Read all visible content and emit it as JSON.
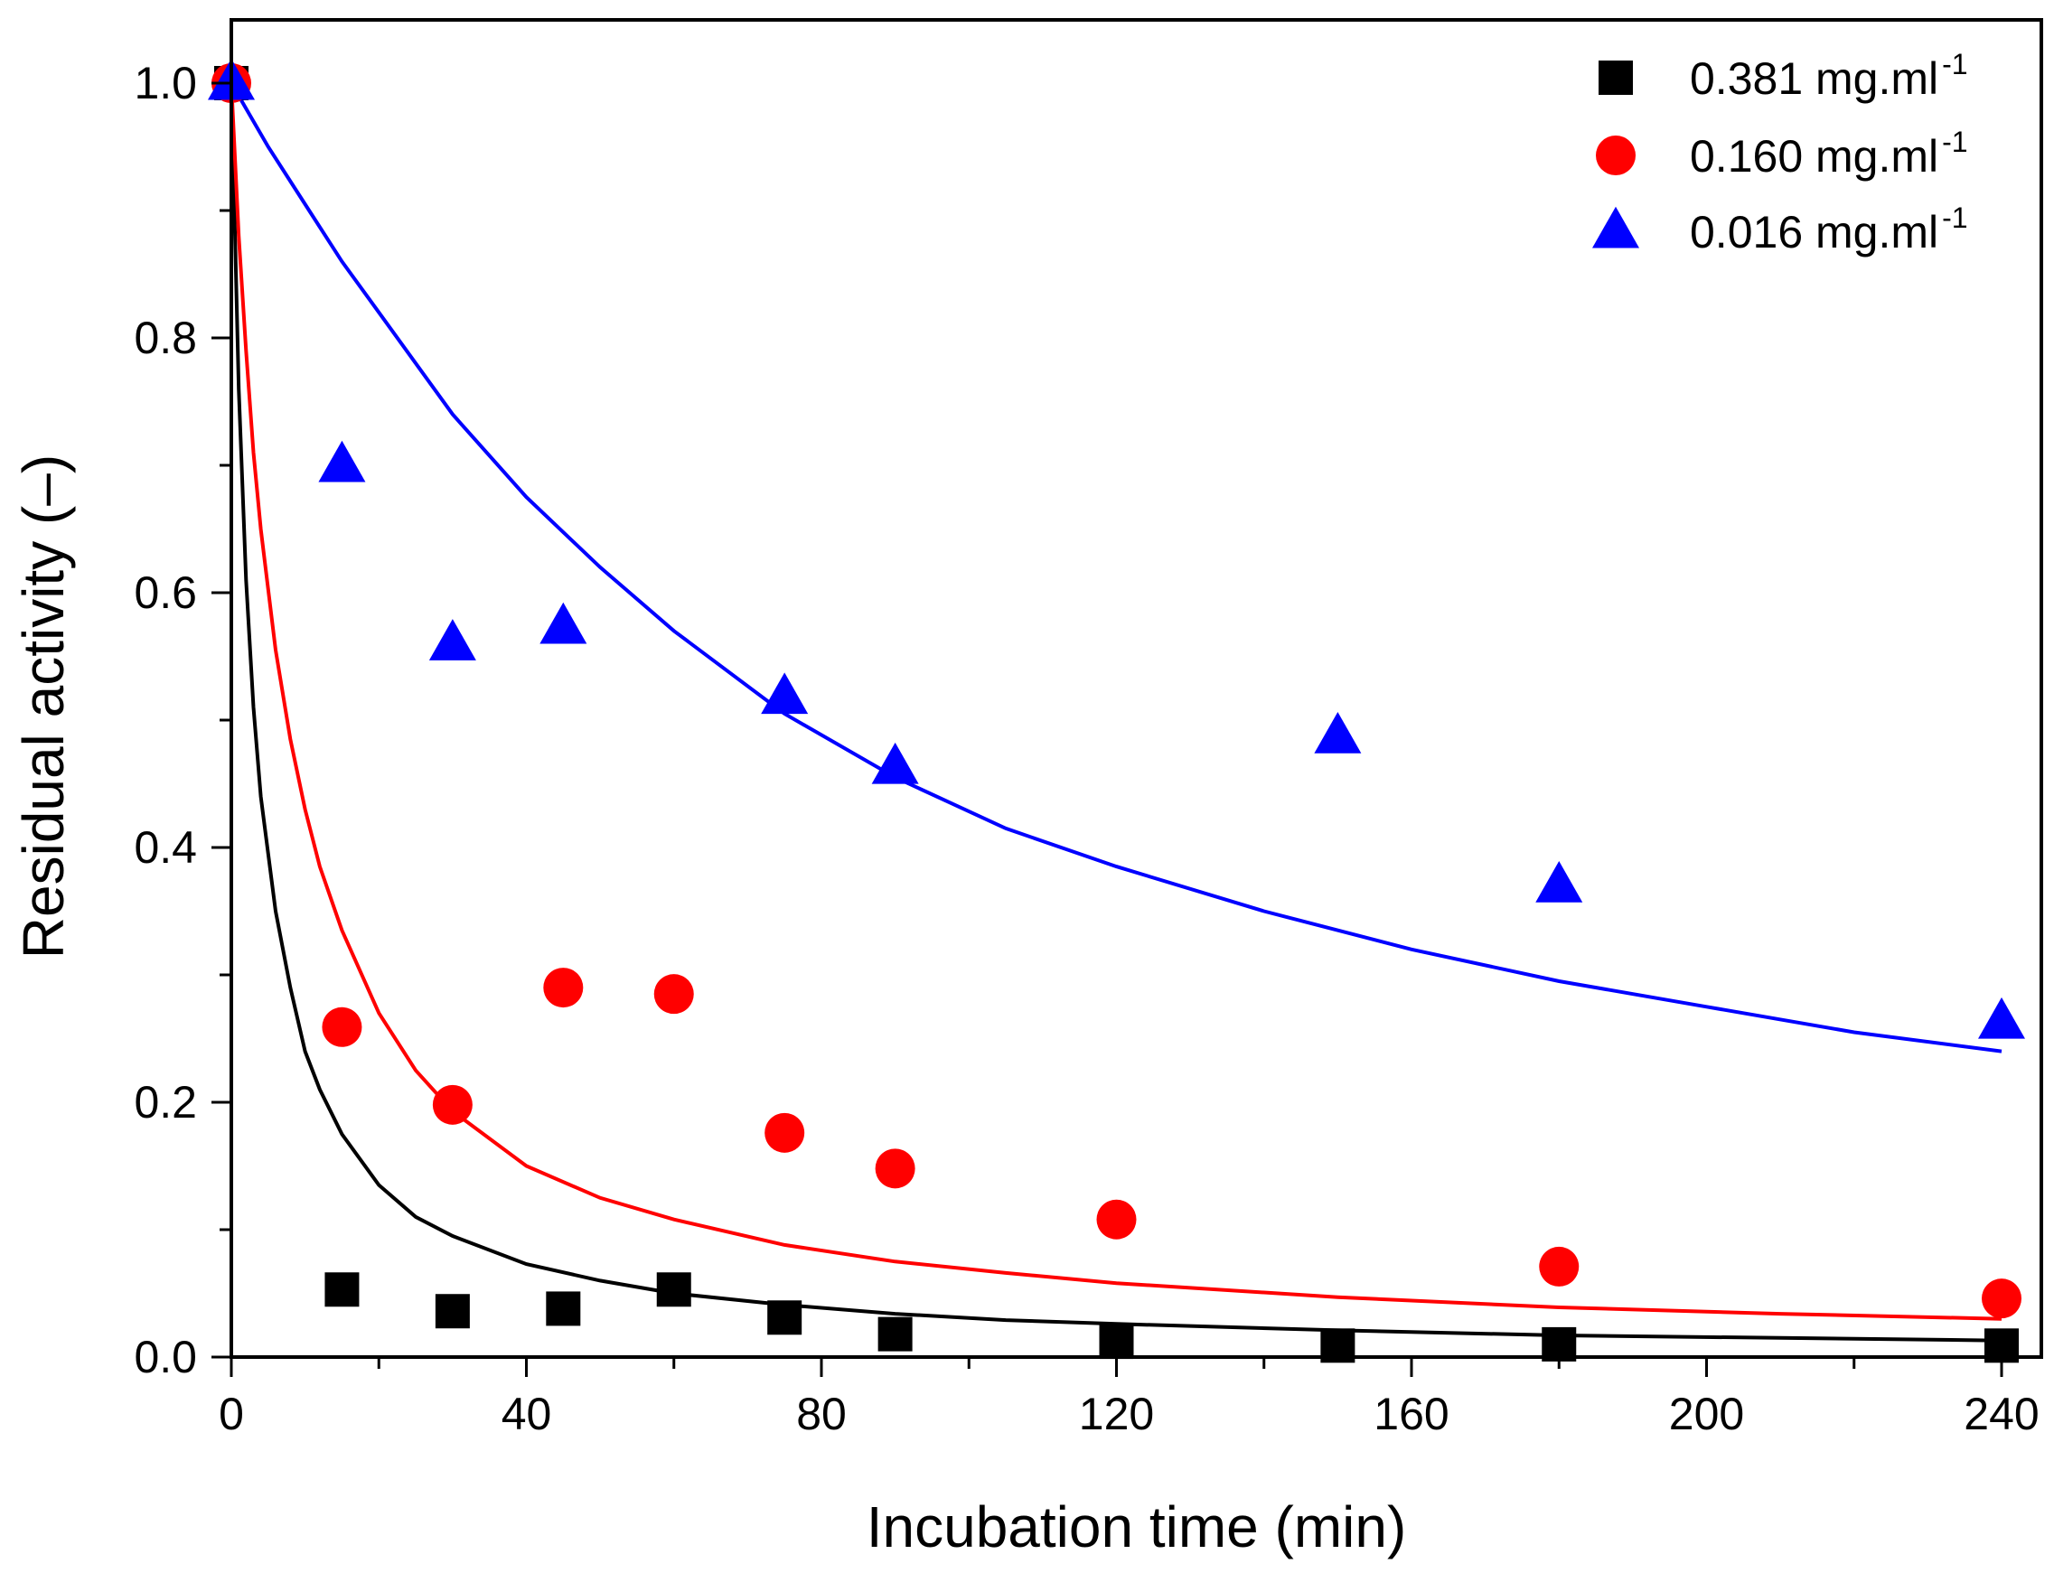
{
  "chart_data": {
    "type": "scatter",
    "title": "",
    "xlabel": "Incubation time (min)",
    "ylabel": "Residual activity (–)",
    "xlim": [
      0,
      245
    ],
    "ylim": [
      0,
      1.05
    ],
    "x_ticks": [
      0,
      40,
      80,
      120,
      160,
      200,
      240
    ],
    "y_ticks": [
      0.0,
      0.2,
      0.4,
      0.6,
      0.8,
      1.0
    ],
    "x_tick_labels": [
      "0",
      "40",
      "80",
      "120",
      "160",
      "200",
      "240"
    ],
    "y_tick_labels": [
      "0.0",
      "0.2",
      "0.4",
      "0.6",
      "0.8",
      "1.0"
    ],
    "grid": false,
    "legend_position": "top-right",
    "series": [
      {
        "name": "0.381 mg.ml",
        "name_superscript": "-1",
        "marker": "square",
        "color": "#000000",
        "x": [
          0,
          15,
          30,
          45,
          60,
          75,
          90,
          120,
          150,
          180,
          240
        ],
        "y": [
          1.0,
          0.053,
          0.036,
          0.038,
          0.053,
          0.031,
          0.018,
          0.012,
          0.009,
          0.01,
          0.009
        ],
        "fit": {
          "x": [
            0,
            1,
            2,
            3,
            4,
            6,
            8,
            10,
            12,
            15,
            20,
            25,
            30,
            40,
            50,
            60,
            75,
            90,
            105,
            120,
            150,
            180,
            210,
            240
          ],
          "y": [
            1.0,
            0.76,
            0.61,
            0.51,
            0.44,
            0.35,
            0.29,
            0.24,
            0.21,
            0.175,
            0.135,
            0.11,
            0.095,
            0.073,
            0.06,
            0.05,
            0.041,
            0.034,
            0.029,
            0.026,
            0.021,
            0.017,
            0.015,
            0.013
          ]
        }
      },
      {
        "name": "0.160 mg.ml",
        "name_superscript": "-1",
        "marker": "circle",
        "color": "#ff0000",
        "x": [
          0,
          15,
          30,
          45,
          60,
          75,
          90,
          120,
          180,
          240
        ],
        "y": [
          1.0,
          0.259,
          0.198,
          0.29,
          0.285,
          0.176,
          0.148,
          0.108,
          0.071,
          0.046
        ],
        "fit": {
          "x": [
            0,
            1,
            2,
            3,
            4,
            6,
            8,
            10,
            12,
            15,
            20,
            25,
            30,
            40,
            50,
            60,
            75,
            90,
            105,
            120,
            150,
            180,
            210,
            240
          ],
          "y": [
            1.0,
            0.88,
            0.79,
            0.71,
            0.65,
            0.555,
            0.485,
            0.43,
            0.385,
            0.335,
            0.27,
            0.225,
            0.193,
            0.15,
            0.125,
            0.108,
            0.088,
            0.075,
            0.066,
            0.058,
            0.047,
            0.039,
            0.034,
            0.03
          ]
        }
      },
      {
        "name": "0.016 mg.ml",
        "name_superscript": "-1",
        "marker": "triangle",
        "color": "#0000ff",
        "x": [
          0,
          15,
          30,
          45,
          75,
          90,
          150,
          180,
          240
        ],
        "y": [
          1.0,
          0.7,
          0.56,
          0.573,
          0.518,
          0.463,
          0.487,
          0.37,
          0.263
        ],
        "fit": {
          "x": [
            0,
            5,
            10,
            15,
            20,
            30,
            40,
            50,
            60,
            75,
            90,
            105,
            120,
            140,
            160,
            180,
            200,
            220,
            240
          ],
          "y": [
            1.0,
            0.95,
            0.905,
            0.86,
            0.82,
            0.74,
            0.675,
            0.62,
            0.57,
            0.505,
            0.455,
            0.415,
            0.385,
            0.35,
            0.32,
            0.295,
            0.275,
            0.255,
            0.24
          ]
        }
      }
    ]
  }
}
